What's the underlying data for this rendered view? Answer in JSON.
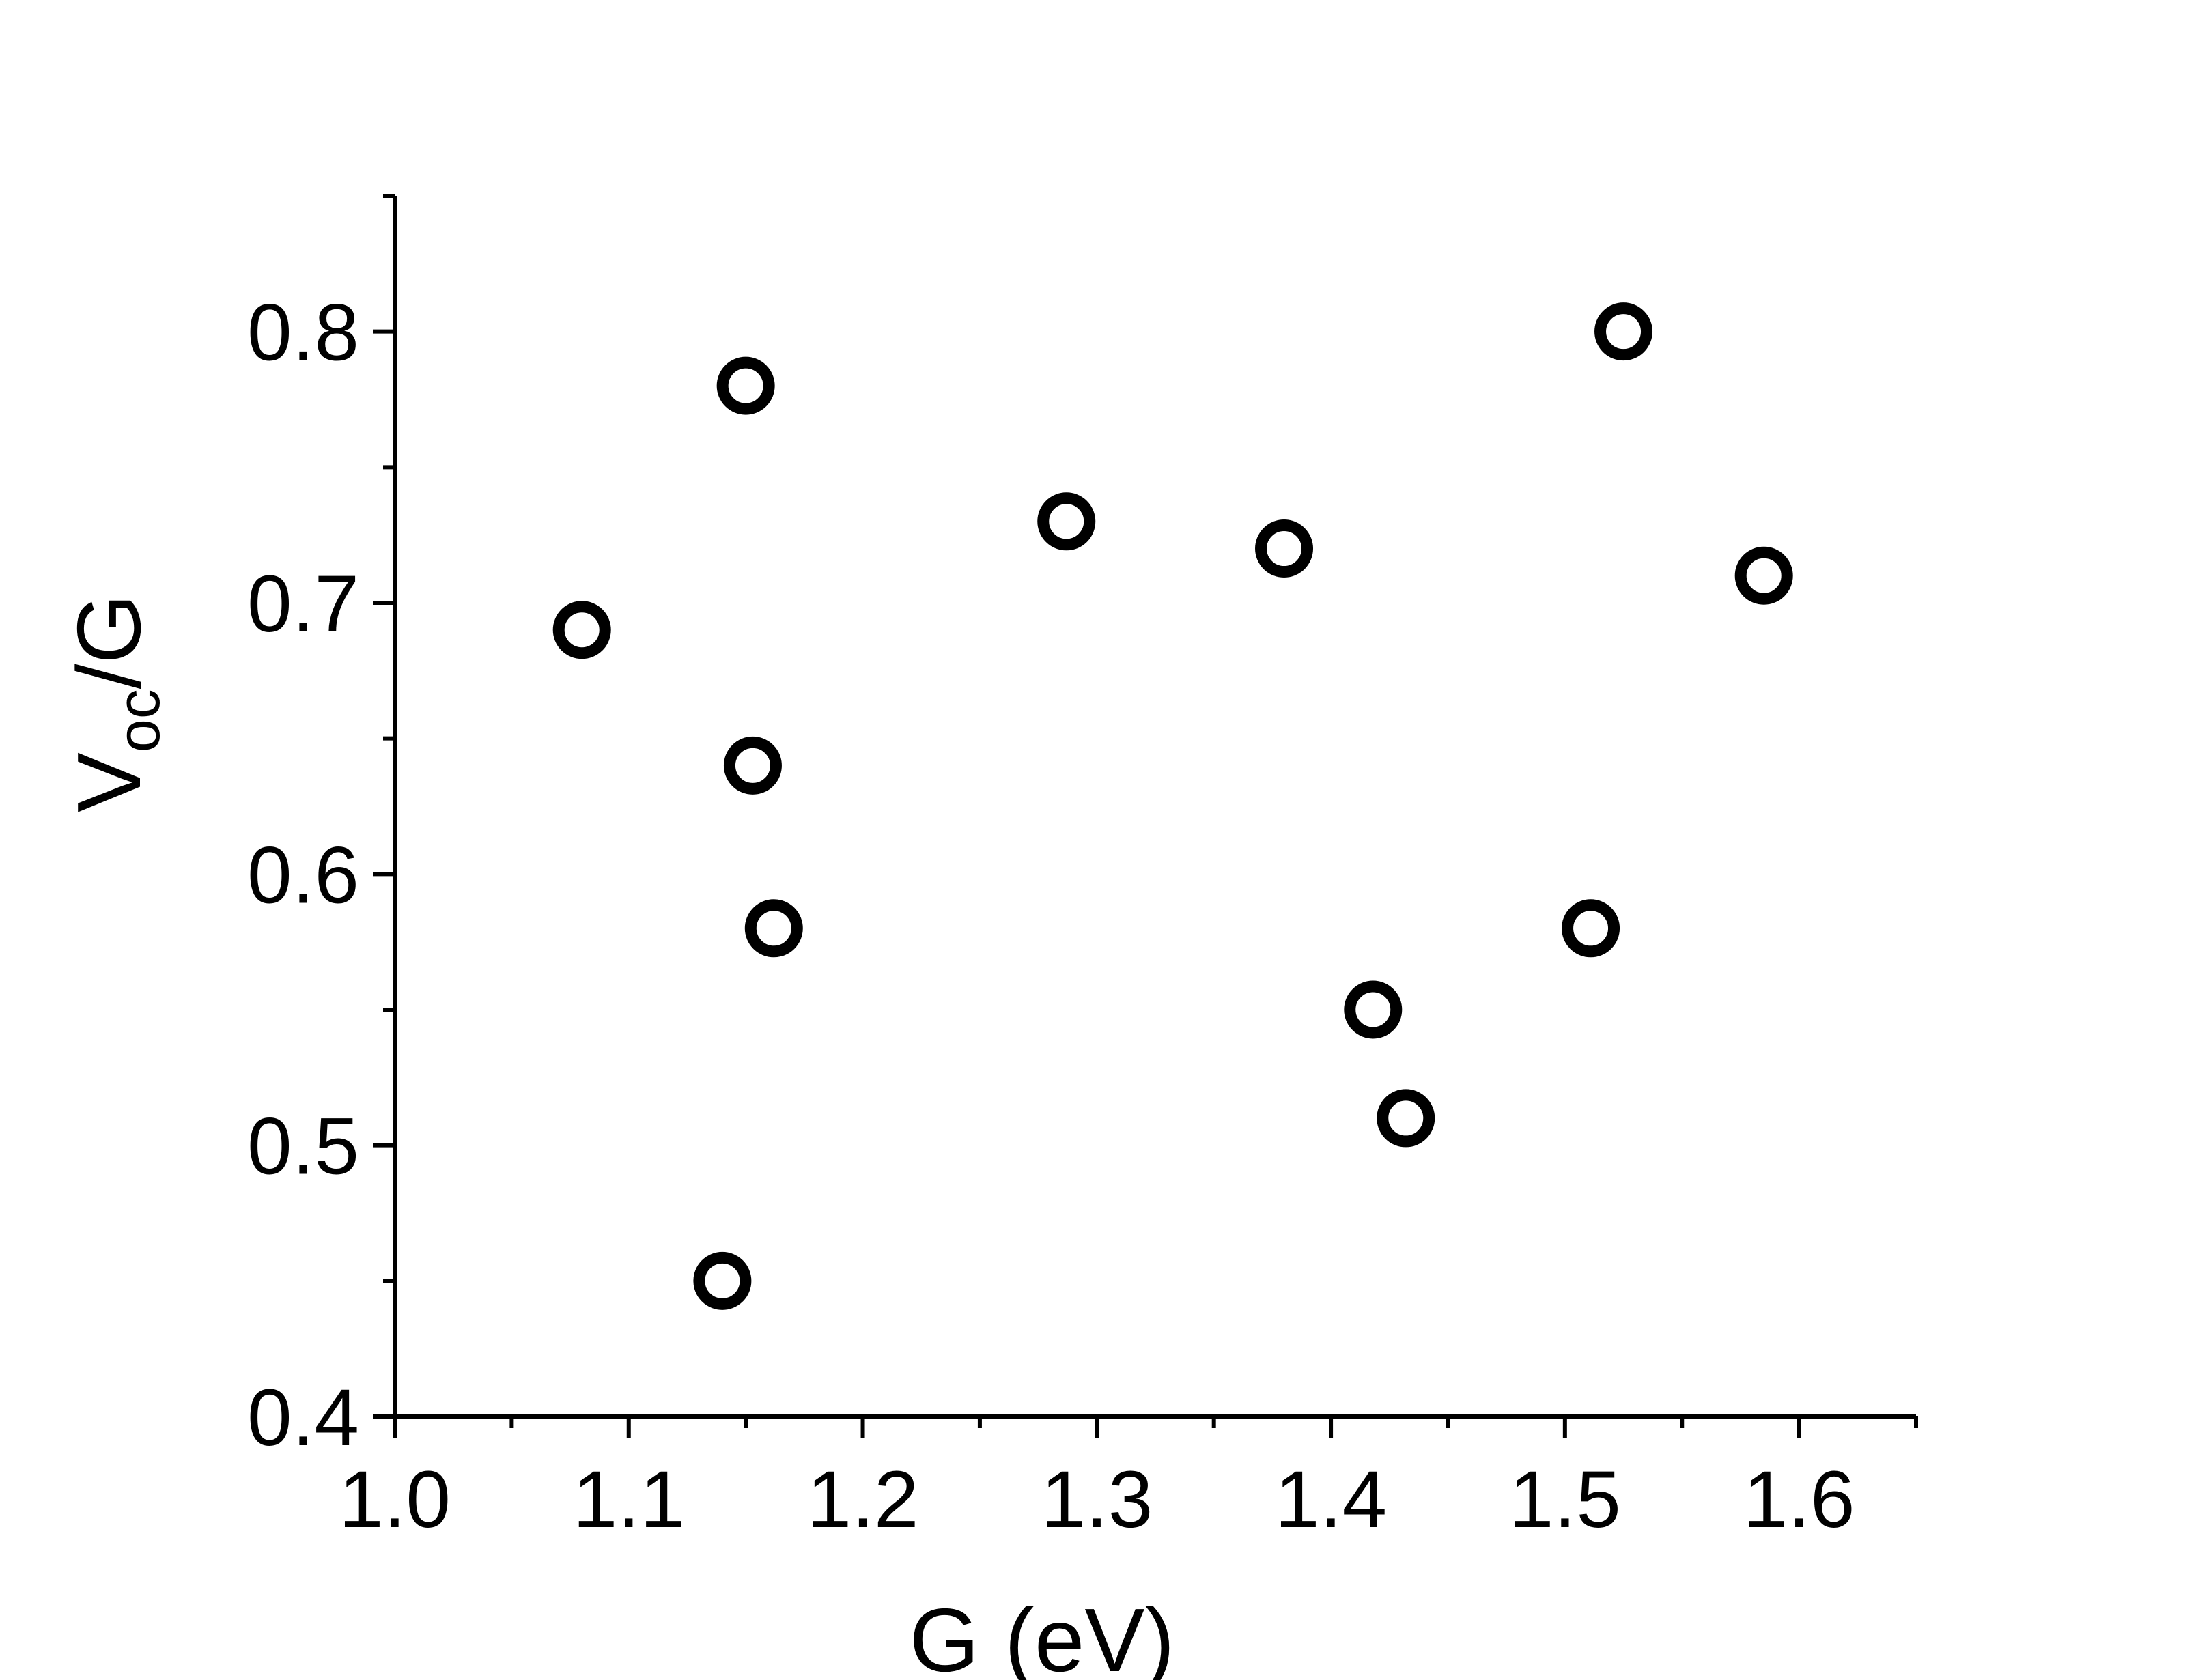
{
  "chart_data": {
    "type": "scatter",
    "title": "",
    "xlabel": "G (eV)",
    "ylabel_main": "V",
    "ylabel_sub": "oc",
    "ylabel_tail": "/G",
    "xlim": [
      1.0,
      1.65
    ],
    "ylim": [
      0.4,
      0.85
    ],
    "x_ticks": [
      1.0,
      1.1,
      1.2,
      1.3,
      1.4,
      1.5,
      1.6
    ],
    "x_tick_labels": [
      "1.0",
      "1.1",
      "1.2",
      "1.3",
      "1.4",
      "1.5",
      "1.6"
    ],
    "x_minor_ticks": [
      1.05,
      1.15,
      1.25,
      1.35,
      1.45,
      1.55,
      1.65
    ],
    "y_ticks": [
      0.4,
      0.5,
      0.6,
      0.7,
      0.8
    ],
    "y_tick_labels": [
      "0.4",
      "0.5",
      "0.6",
      "0.7",
      "0.8"
    ],
    "y_minor_ticks": [
      0.45,
      0.55,
      0.65,
      0.75,
      0.85
    ],
    "grid": false,
    "marker": "open-circle",
    "color": "#000000",
    "series": [
      {
        "points": [
          {
            "x": 1.08,
            "y": 0.69
          },
          {
            "x": 1.14,
            "y": 0.45
          },
          {
            "x": 1.15,
            "y": 0.78
          },
          {
            "x": 1.153,
            "y": 0.64
          },
          {
            "x": 1.162,
            "y": 0.58
          },
          {
            "x": 1.287,
            "y": 0.73
          },
          {
            "x": 1.38,
            "y": 0.72
          },
          {
            "x": 1.418,
            "y": 0.55
          },
          {
            "x": 1.432,
            "y": 0.51
          },
          {
            "x": 1.511,
            "y": 0.58
          },
          {
            "x": 1.525,
            "y": 0.8
          },
          {
            "x": 1.585,
            "y": 0.71
          }
        ]
      }
    ]
  }
}
